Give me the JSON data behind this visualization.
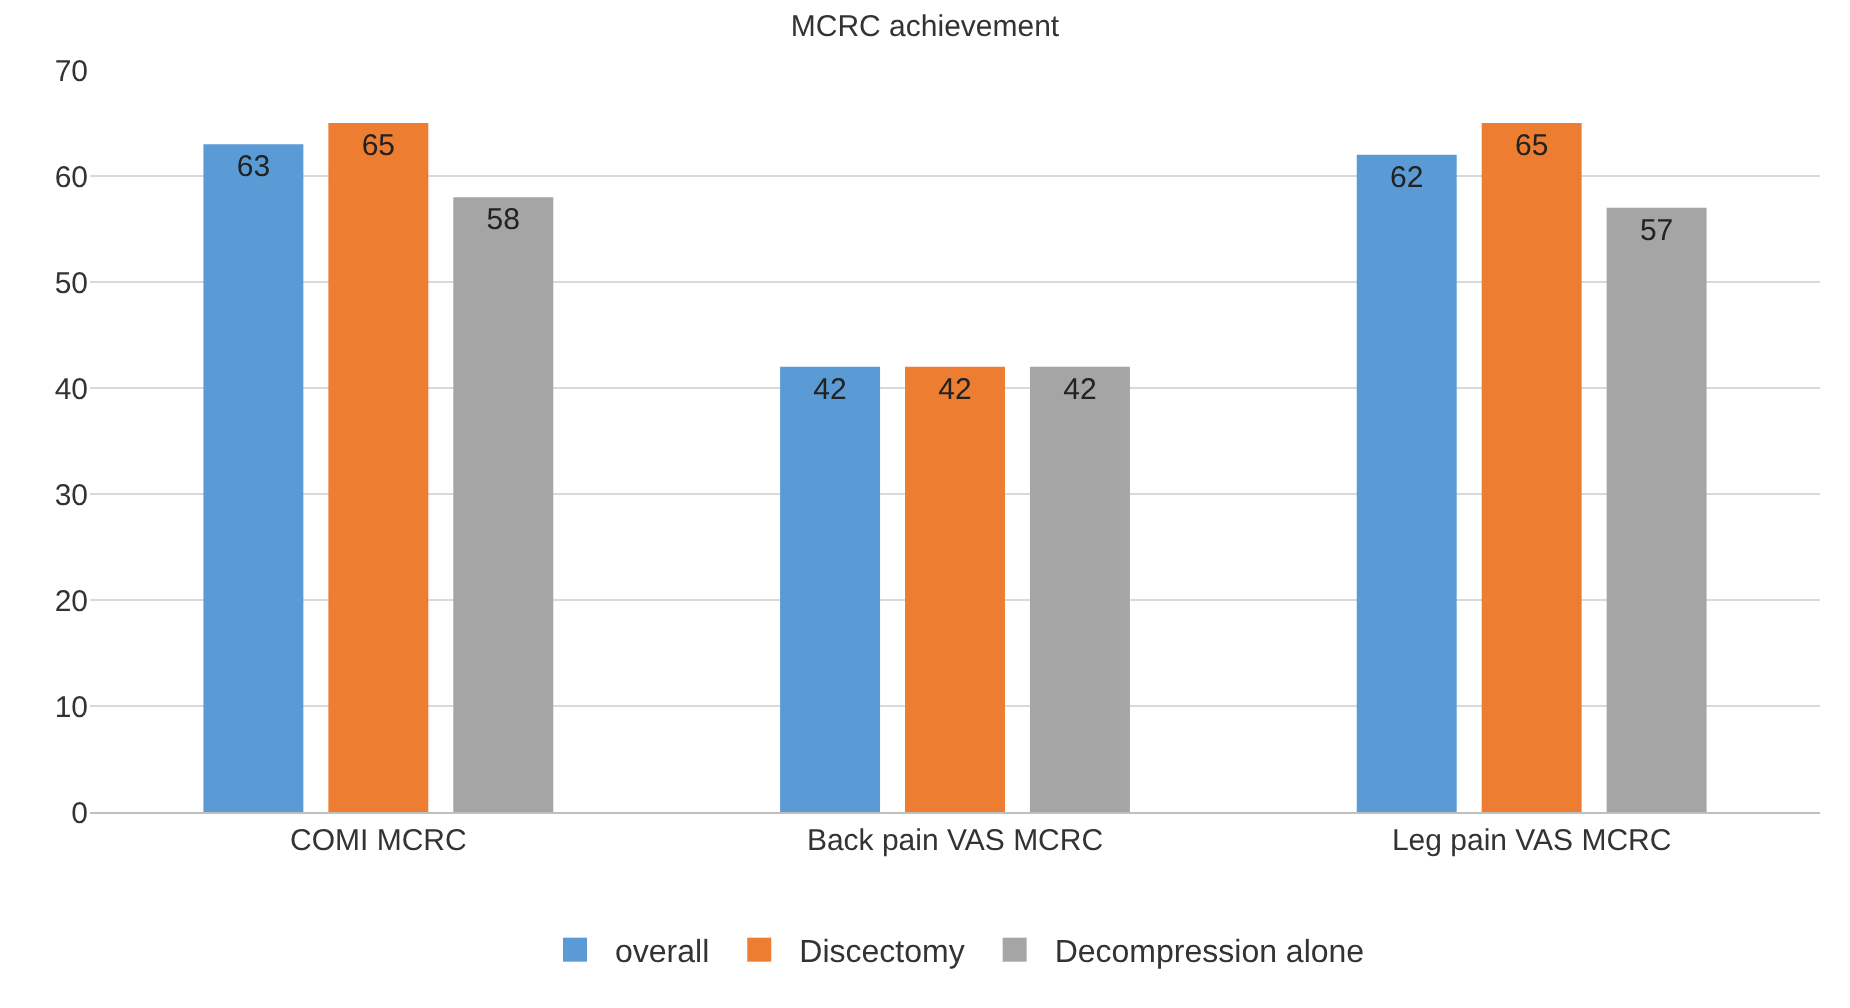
{
  "chart_data": {
    "type": "bar",
    "title": "MCRC achievement",
    "categories": [
      "COMI MCRC",
      "Back pain VAS MCRC",
      "Leg pain VAS MCRC"
    ],
    "series": [
      {
        "name": "overall",
        "color": "#5b9bd5",
        "values": [
          63,
          42,
          62
        ]
      },
      {
        "name": "Discectomy",
        "color": "#ed7d31",
        "values": [
          65,
          42,
          65
        ]
      },
      {
        "name": "Decompression alone",
        "color": "#a5a5a5",
        "values": [
          58,
          42,
          57
        ]
      }
    ],
    "ylim": [
      0,
      70
    ],
    "yticks": [
      0,
      10,
      20,
      30,
      40,
      50,
      60,
      70
    ],
    "grid": "y",
    "legend": "bottom",
    "data_labels": true
  }
}
